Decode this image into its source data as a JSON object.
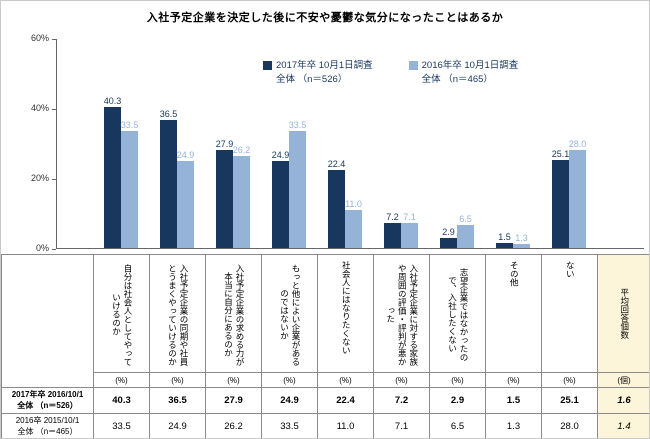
{
  "title": "入社予定企業を決定した後に不安や憂鬱な気分になったことはあるか",
  "legend": {
    "items": [
      {
        "swatch_color": "#17375E",
        "label": "2017年卒  10月1日調査",
        "sub_label": "全体 （n＝526）"
      },
      {
        "swatch_color": "#95B3D7",
        "label": "2016年卒  10月1日調査",
        "sub_label": "全体 （n＝465）"
      }
    ]
  },
  "y_axis": {
    "tick_labels": [
      "60%",
      "40%",
      "20%",
      "0%"
    ]
  },
  "chart_data": {
    "type": "bar",
    "title": "入社予定企業を決定した後に不安や憂鬱な気分になったことはあるか",
    "categories": [
      "自分は社会人としてやっていけるのか",
      "入社予定企業の同期や社員とうまくやっていけるのか",
      "入社予定企業の求める力が本当に自分にあるのか",
      "もっと他によい企業があるのではないか",
      "社会人にはなりたくない",
      "入社予定企業に対する家族や周囲の評価・評判が悪かった",
      "志望企業ではなかったので、入社したくない",
      "その他",
      "ない"
    ],
    "series": [
      {
        "name": "2017年卒 10月1日調査 全体（n＝526）",
        "color": "#17375E",
        "values": [
          40.3,
          36.5,
          27.9,
          24.9,
          22.4,
          7.2,
          2.9,
          1.5,
          25.1
        ]
      },
      {
        "name": "2016年卒 10月1日調査 全体（n＝465）",
        "color": "#95B3D7",
        "values": [
          33.5,
          24.9,
          26.2,
          33.5,
          11.0,
          7.1,
          6.5,
          1.3,
          28.0
        ]
      }
    ],
    "ylim": [
      0,
      60
    ],
    "y_tick_interval": 20,
    "grid": false,
    "legend_position": "top-right",
    "data_labels": true
  },
  "table": {
    "column_unit": "(%)",
    "avg_column": {
      "header": "平均回答個数",
      "unit": "(個)"
    },
    "rows": [
      {
        "label_line1": "2017年卒  2016/10/1",
        "label_line2": "全体 （n＝526）",
        "values": [
          "40.3",
          "36.5",
          "27.9",
          "24.9",
          "22.4",
          "7.2",
          "2.9",
          "1.5",
          "25.1"
        ],
        "avg": "1.6",
        "emphasis": true
      },
      {
        "label_line1": "2016卒  2015/10/1",
        "label_line2": "全体 （n＝465）",
        "values": [
          "33.5",
          "24.9",
          "26.2",
          "33.5",
          "11.0",
          "7.1",
          "6.5",
          "1.3",
          "28.0"
        ],
        "avg": "1.4",
        "emphasis": false
      }
    ]
  },
  "colors": {
    "series1": "#17375E",
    "series2": "#95B3D7",
    "avg_column_bg": "#FDF5D9",
    "table_border": "#8a8a8a"
  }
}
